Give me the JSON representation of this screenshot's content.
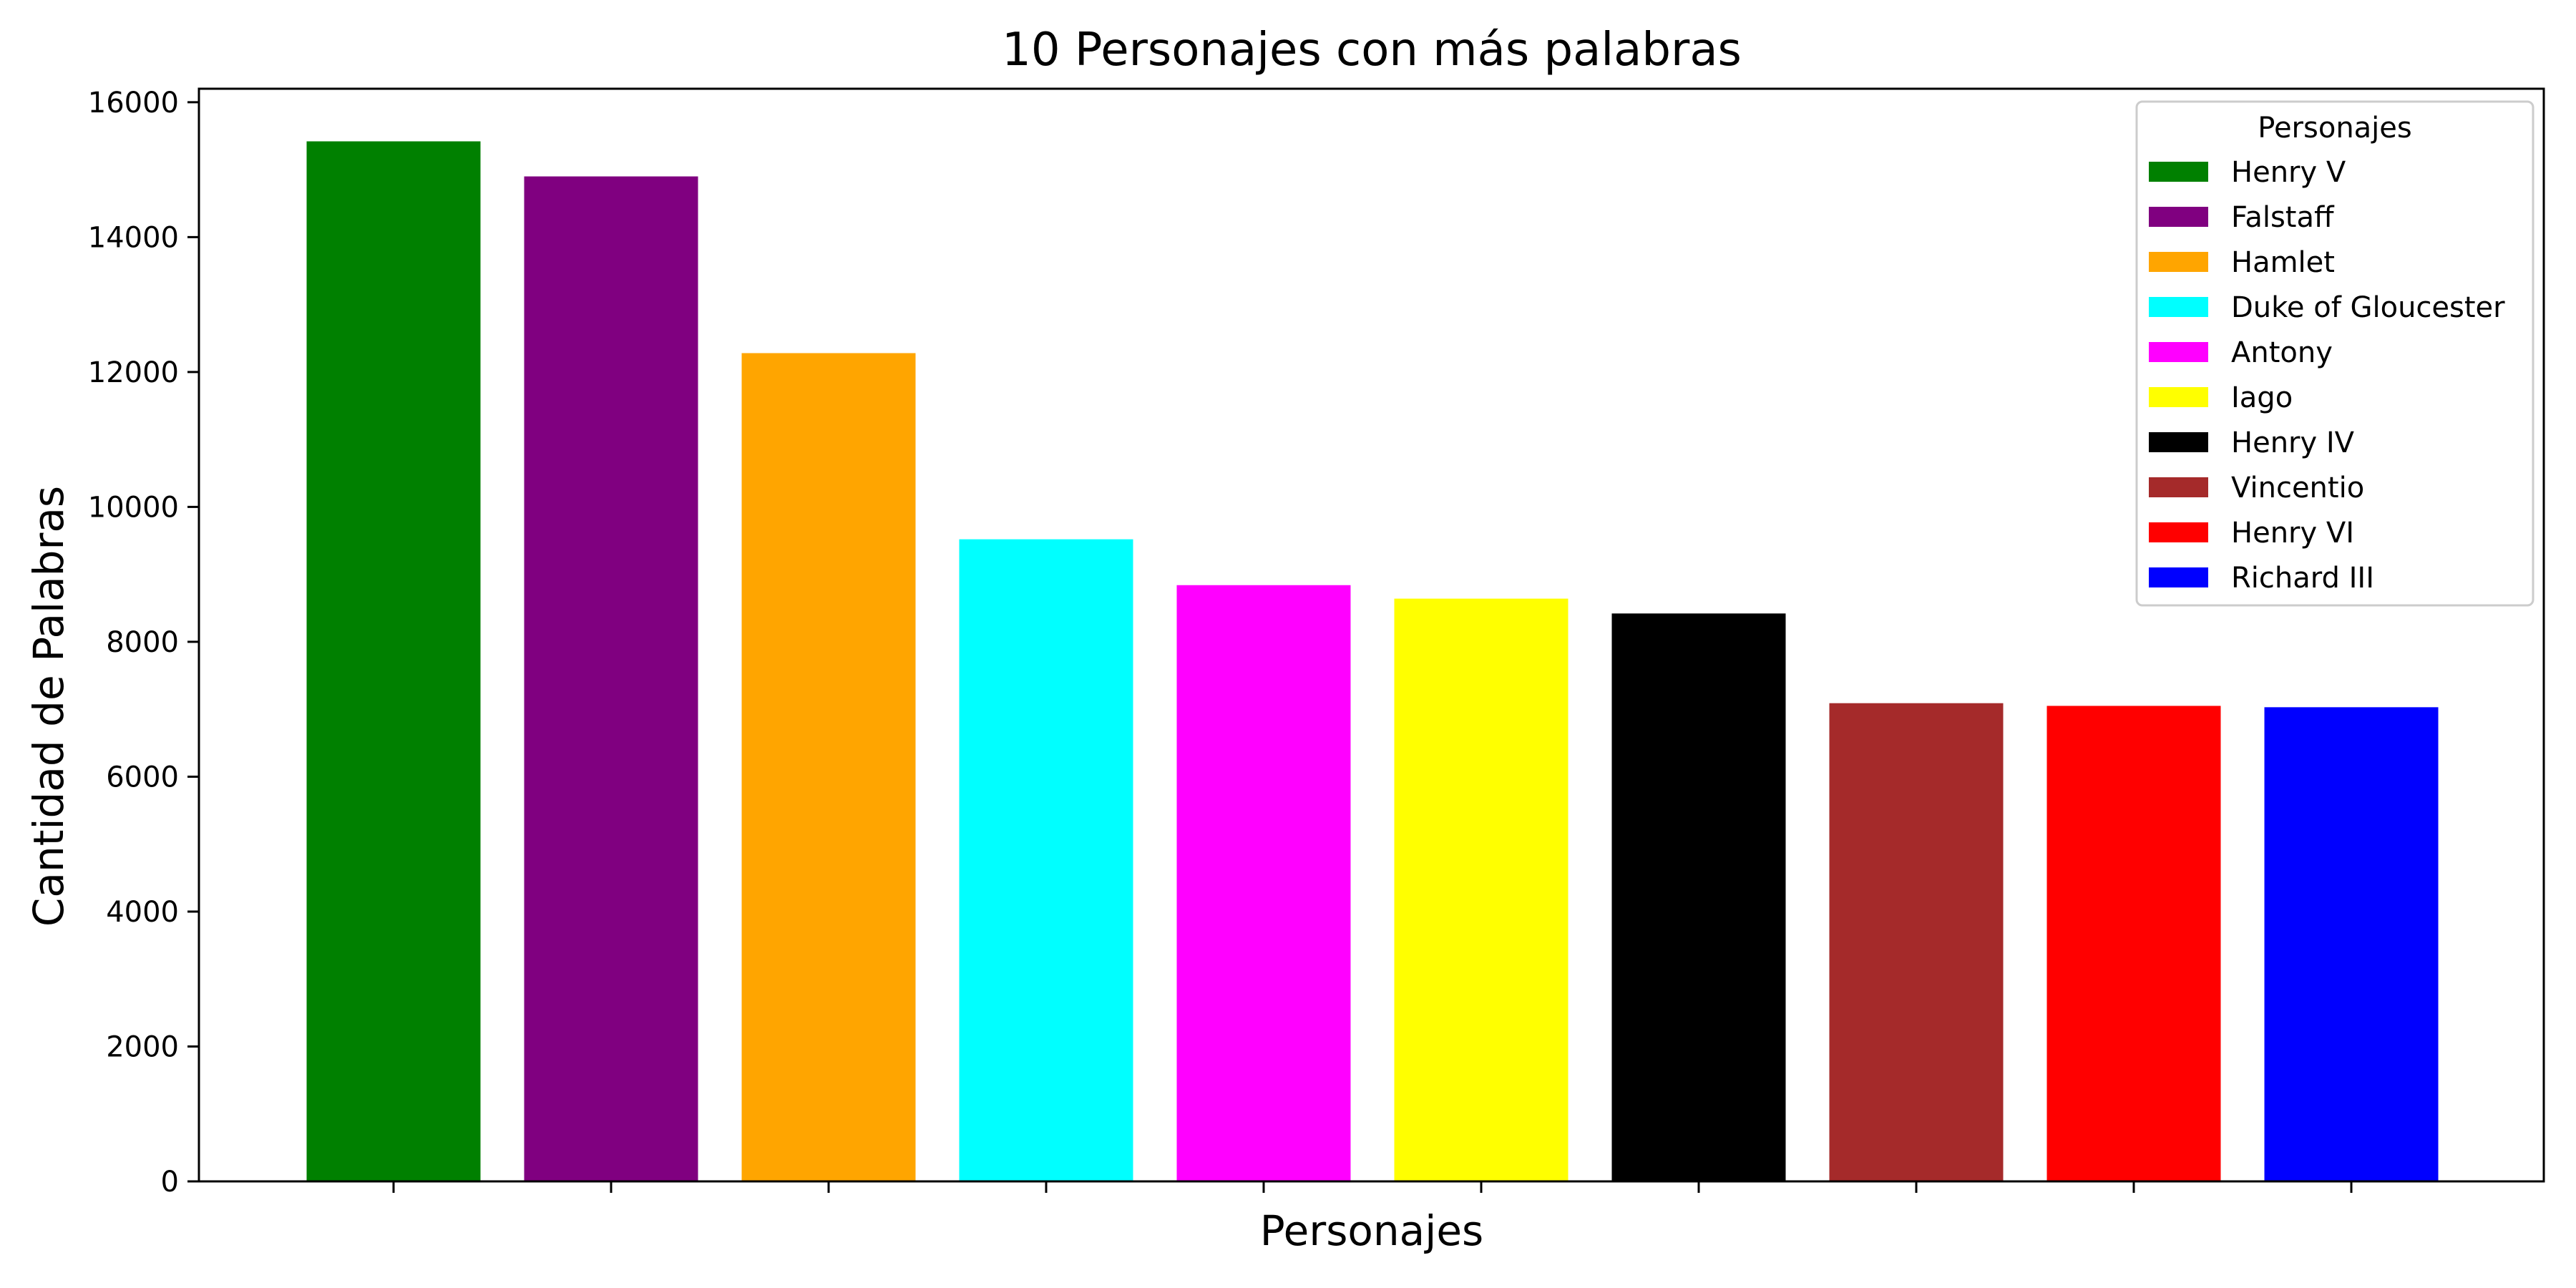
{
  "chart_data": {
    "type": "bar",
    "title": "10 Personajes con más palabras",
    "xlabel": "Personajes",
    "ylabel": "Cantidad de Palabras",
    "ylim": [
      0,
      16200
    ],
    "yticks": [
      0,
      2000,
      4000,
      6000,
      8000,
      10000,
      12000,
      14000,
      16000
    ],
    "categories": [
      "Henry V",
      "Falstaff",
      "Hamlet",
      "Duke of Gloucester",
      "Antony",
      "Iago",
      "Henry IV",
      "Vincentio",
      "Henry VI",
      "Richard III"
    ],
    "values": [
      15420,
      14900,
      12280,
      9520,
      8840,
      8640,
      8420,
      7090,
      7050,
      7030
    ],
    "colors": [
      "#008000",
      "#800080",
      "#ffa500",
      "#00ffff",
      "#ff00ff",
      "#ffff00",
      "#000000",
      "#a52a2a",
      "#ff0000",
      "#0000ff"
    ],
    "show_x_tick_labels": false,
    "grid": false,
    "legend": {
      "title": "Personajes",
      "position": "top-right"
    }
  }
}
